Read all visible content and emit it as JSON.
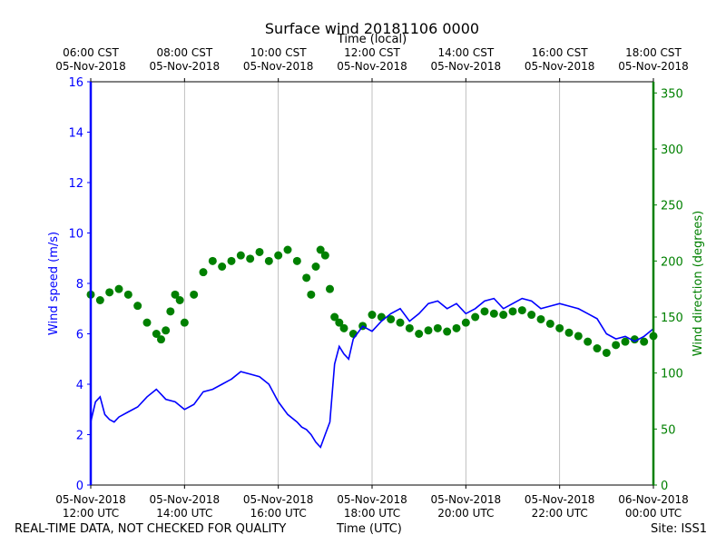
{
  "chart_data": {
    "type": "line",
    "title": "Surface wind 20181106 0000",
    "top_axis_label": "Time (local)",
    "xlabel": "Time (UTC)",
    "ylabel_left": "Wind speed (m/s)",
    "ylabel_right": "Wind direction (degrees)",
    "xlim_hours_utc": [
      12,
      24
    ],
    "ylim_left": [
      0,
      16
    ],
    "ylim_right": [
      0,
      360
    ],
    "left_ticks": [
      0,
      2,
      4,
      6,
      8,
      10,
      12,
      14,
      16
    ],
    "right_ticks": [
      0,
      50,
      100,
      150,
      200,
      250,
      300,
      350
    ],
    "bottom_ticks": [
      {
        "hour": 12,
        "line1": "05-Nov-2018",
        "line2": "12:00 UTC"
      },
      {
        "hour": 14,
        "line1": "05-Nov-2018",
        "line2": "14:00 UTC"
      },
      {
        "hour": 16,
        "line1": "05-Nov-2018",
        "line2": "16:00 UTC"
      },
      {
        "hour": 18,
        "line1": "05-Nov-2018",
        "line2": "18:00 UTC"
      },
      {
        "hour": 20,
        "line1": "05-Nov-2018",
        "line2": "20:00 UTC"
      },
      {
        "hour": 22,
        "line1": "05-Nov-2018",
        "line2": "22:00 UTC"
      },
      {
        "hour": 24,
        "line1": "06-Nov-2018",
        "line2": "00:00 UTC"
      }
    ],
    "top_ticks": [
      {
        "hour": 12,
        "line1": "06:00 CST",
        "line2": "05-Nov-2018"
      },
      {
        "hour": 14,
        "line1": "08:00 CST",
        "line2": "05-Nov-2018"
      },
      {
        "hour": 16,
        "line1": "10:00 CST",
        "line2": "05-Nov-2018"
      },
      {
        "hour": 18,
        "line1": "12:00 CST",
        "line2": "05-Nov-2018"
      },
      {
        "hour": 20,
        "line1": "14:00 CST",
        "line2": "05-Nov-2018"
      },
      {
        "hour": 22,
        "line1": "16:00 CST",
        "line2": "05-Nov-2018"
      },
      {
        "hour": 24,
        "line1": "18:00 CST",
        "line2": "05-Nov-2018"
      }
    ],
    "grid": "vertical",
    "series": [
      {
        "name": "Wind speed",
        "axis": "left",
        "style": "line",
        "color": "#0000ff",
        "x": [
          12.0,
          12.1,
          12.2,
          12.3,
          12.4,
          12.5,
          12.6,
          12.8,
          13.0,
          13.2,
          13.4,
          13.5,
          13.6,
          13.8,
          14.0,
          14.2,
          14.4,
          14.6,
          14.8,
          15.0,
          15.2,
          15.4,
          15.6,
          15.8,
          16.0,
          16.2,
          16.4,
          16.5,
          16.6,
          16.7,
          16.8,
          16.9,
          17.0,
          17.1,
          17.2,
          17.3,
          17.4,
          17.5,
          17.6,
          17.8,
          18.0,
          18.2,
          18.4,
          18.6,
          18.8,
          19.0,
          19.2,
          19.4,
          19.6,
          19.8,
          20.0,
          20.2,
          20.4,
          20.6,
          20.8,
          21.0,
          21.2,
          21.4,
          21.6,
          21.8,
          22.0,
          22.2,
          22.4,
          22.6,
          22.8,
          23.0,
          23.2,
          23.4,
          23.6,
          23.8,
          24.0
        ],
        "y": [
          2.5,
          3.3,
          3.5,
          2.8,
          2.6,
          2.5,
          2.7,
          2.9,
          3.1,
          3.5,
          3.8,
          3.6,
          3.4,
          3.3,
          3.0,
          3.2,
          3.7,
          3.8,
          4.0,
          4.2,
          4.5,
          4.4,
          4.3,
          4.0,
          3.3,
          2.8,
          2.5,
          2.3,
          2.2,
          2.0,
          1.7,
          1.5,
          2.0,
          2.5,
          4.8,
          5.5,
          5.2,
          5.0,
          5.8,
          6.3,
          6.1,
          6.5,
          6.8,
          7.0,
          6.5,
          6.8,
          7.2,
          7.3,
          7.0,
          7.2,
          6.8,
          7.0,
          7.3,
          7.4,
          7.0,
          7.2,
          7.4,
          7.3,
          7.0,
          7.1,
          7.2,
          7.1,
          7.0,
          6.8,
          6.6,
          6.0,
          5.8,
          5.9,
          5.7,
          5.9,
          6.2
        ]
      },
      {
        "name": "Wind direction",
        "axis": "right",
        "style": "markers",
        "color": "#008000",
        "x": [
          12.0,
          12.2,
          12.4,
          12.6,
          12.8,
          13.0,
          13.2,
          13.4,
          13.5,
          13.6,
          13.7,
          13.8,
          13.9,
          14.0,
          14.2,
          14.4,
          14.6,
          14.8,
          15.0,
          15.2,
          15.4,
          15.6,
          15.8,
          16.0,
          16.2,
          16.4,
          16.6,
          16.7,
          16.8,
          16.9,
          17.0,
          17.1,
          17.2,
          17.3,
          17.4,
          17.6,
          17.8,
          18.0,
          18.2,
          18.4,
          18.6,
          18.8,
          19.0,
          19.2,
          19.4,
          19.6,
          19.8,
          20.0,
          20.2,
          20.4,
          20.6,
          20.8,
          21.0,
          21.2,
          21.4,
          21.6,
          21.8,
          22.0,
          22.2,
          22.4,
          22.6,
          22.8,
          23.0,
          23.2,
          23.4,
          23.6,
          23.8,
          24.0
        ],
        "y": [
          170,
          165,
          172,
          175,
          170,
          160,
          145,
          135,
          130,
          138,
          155,
          170,
          165,
          145,
          170,
          190,
          200,
          195,
          200,
          205,
          202,
          208,
          200,
          205,
          210,
          200,
          185,
          170,
          195,
          210,
          205,
          175,
          150,
          145,
          140,
          135,
          142,
          152,
          150,
          148,
          145,
          140,
          135,
          138,
          140,
          137,
          140,
          145,
          150,
          155,
          153,
          152,
          155,
          156,
          152,
          148,
          144,
          140,
          136,
          133,
          128,
          122,
          118,
          125,
          128,
          130,
          128,
          133
        ]
      }
    ]
  },
  "footer": {
    "left": "REAL-TIME DATA, NOT CHECKED FOR QUALITY",
    "center": "Time (UTC)",
    "right": "Site: ISS1"
  }
}
